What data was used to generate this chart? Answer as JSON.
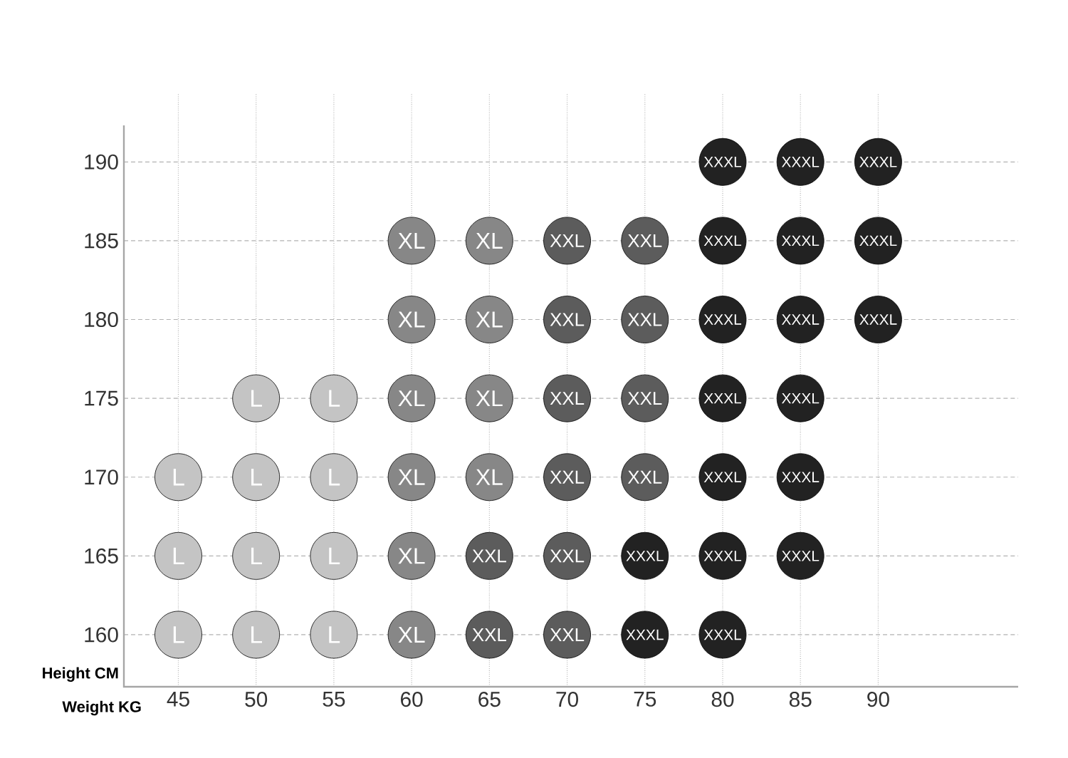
{
  "chart_data": {
    "type": "scatter",
    "xlabel": "Weight KG",
    "ylabel": "Height CM",
    "categories": [
      "45",
      "50",
      "55",
      "60",
      "65",
      "70",
      "75",
      "80",
      "85",
      "90"
    ],
    "ylim": [
      156.7,
      194.4
    ],
    "yticks": [
      160,
      165,
      170,
      175,
      180,
      185,
      190
    ],
    "series": [
      {
        "color": "#c4c4c4",
        "x": [
          "45",
          "45",
          "45",
          "50",
          "50",
          "50",
          "50",
          "55",
          "55",
          "55",
          "55"
        ],
        "values": [
          170,
          165,
          160,
          175,
          170,
          165,
          160,
          175,
          170,
          165,
          160
        ],
        "value_labels": [
          "L",
          "L",
          "L",
          "L",
          "L",
          "L",
          "L",
          "L",
          "L",
          "L",
          "L"
        ]
      },
      {
        "color": "#878787",
        "x": [
          "60",
          "60",
          "60",
          "60",
          "60",
          "60",
          "65",
          "65",
          "65",
          "65"
        ],
        "values": [
          185,
          180,
          175,
          170,
          165,
          160,
          185,
          180,
          175,
          170
        ],
        "value_labels": [
          "XL",
          "XL",
          "XL",
          "XL",
          "XL",
          "XL",
          "XL",
          "XL",
          "XL",
          "XL"
        ]
      },
      {
        "color": "#5c5c5c",
        "x": [
          "65",
          "65",
          "70",
          "70",
          "70",
          "70",
          "70",
          "70",
          "75",
          "75",
          "75",
          "75"
        ],
        "values": [
          165,
          160,
          185,
          180,
          175,
          170,
          165,
          160,
          185,
          180,
          175,
          170
        ],
        "value_labels": [
          "XXL",
          "XXL",
          "XXL",
          "XXL",
          "XXL",
          "XXL",
          "XXL",
          "XXL",
          "XXL",
          "XXL",
          "XXL",
          "XXL"
        ]
      },
      {
        "color": "#222222",
        "x": [
          "75",
          "75",
          "80",
          "80",
          "80",
          "80",
          "80",
          "80",
          "80",
          "85",
          "85",
          "85",
          "85",
          "85",
          "85",
          "90",
          "90",
          "90"
        ],
        "values": [
          165,
          160,
          190,
          185,
          180,
          175,
          170,
          165,
          160,
          190,
          185,
          180,
          175,
          170,
          165,
          190,
          185,
          180
        ],
        "value_labels": [
          "XXXL",
          "XXXL",
          "XXXL",
          "XXXL",
          "XXXL",
          "XXXL",
          "XXXL",
          "XXXL",
          "XXXL",
          "XXXL",
          "XXXL",
          "XXXL",
          "XXXL",
          "XXXL",
          "XXXL",
          "XXXL",
          "XXXL",
          "XXXL"
        ]
      }
    ],
    "marker": "circle",
    "grid": true
  }
}
